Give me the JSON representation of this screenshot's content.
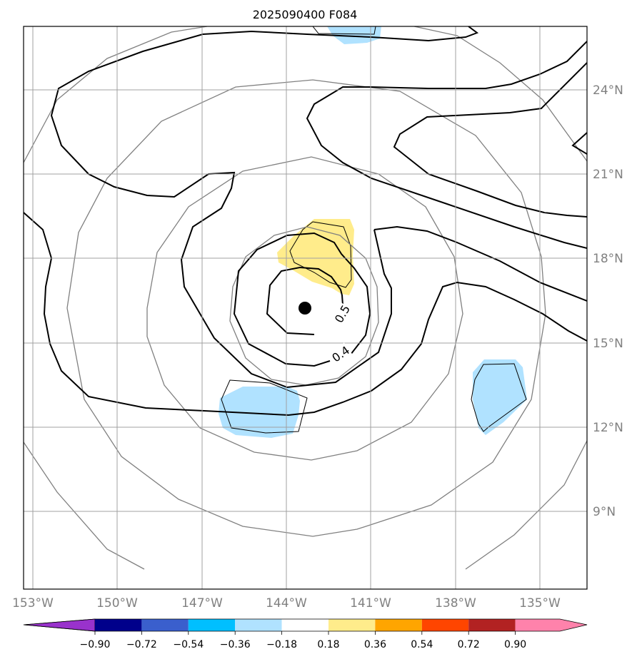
{
  "title": "2025090400 F084",
  "map": {
    "lon_labels": [
      "153°W",
      "150°W",
      "147°W",
      "144°W",
      "141°W",
      "138°W",
      "135°W"
    ],
    "lat_labels": [
      "24°N",
      "21°N",
      "18°N",
      "15°N",
      "12°N",
      "9°N"
    ],
    "center_marker": {
      "lon": -143.6,
      "lat": 16.2
    },
    "contour_labels": [
      "0.5",
      "0.4"
    ],
    "colors": {
      "grid": "#a0a0a0",
      "thin_contour": "#808080",
      "thick_contour": "#000000",
      "positive_fill": "#ffec8b",
      "negative_fill": "#b0e2ff"
    }
  },
  "colorbar": {
    "tick_labels": [
      "−0.90",
      "−0.72",
      "−0.54",
      "−0.36",
      "−0.18",
      "0.18",
      "0.36",
      "0.54",
      "0.72",
      "0.90"
    ],
    "colors": [
      "#9932cc",
      "#00008b",
      "#3a5fcd",
      "#00bfff",
      "#b0e2ff",
      "#ffffff",
      "#ffec8b",
      "#ffa500",
      "#ff4500",
      "#b22222",
      "#ff82ab"
    ]
  }
}
